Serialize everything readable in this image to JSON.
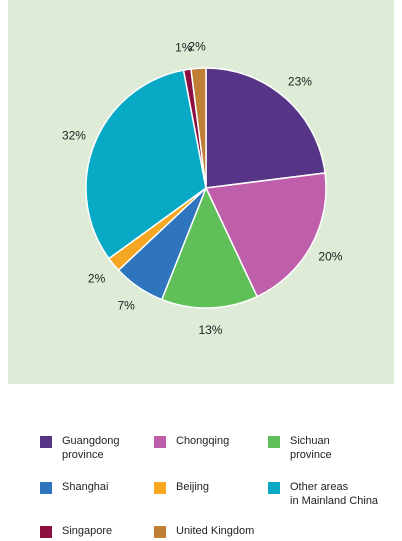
{
  "chart_data": {
    "type": "pie",
    "slices": [
      {
        "label": "Guangdong\nprovince",
        "value": 23,
        "display": "23%",
        "color": "#563587"
      },
      {
        "label": "Chongqing",
        "value": 20,
        "display": "20%",
        "color": "#bf5fac"
      },
      {
        "label": "Sichuan\nprovince",
        "value": 13,
        "display": "13%",
        "color": "#5fbf58"
      },
      {
        "label": "Shanghai",
        "value": 7,
        "display": "7%",
        "color": "#2f75bd"
      },
      {
        "label": "Beijing",
        "value": 2,
        "display": "2%",
        "color": "#f5a623"
      },
      {
        "label": "Other areas\nin Mainland China",
        "value": 32,
        "display": "32%",
        "color": "#08a9c5"
      },
      {
        "label": "Singapore",
        "value": 1,
        "display": "1%",
        "color": "#8d0f3f"
      },
      {
        "label": "United Kingdom",
        "value": 2,
        "display": "2%",
        "color": "#c07f35"
      }
    ]
  }
}
